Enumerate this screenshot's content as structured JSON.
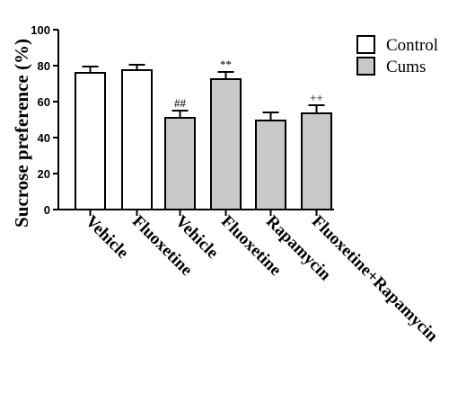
{
  "chart_data": {
    "type": "bar",
    "ylabel": "Sucrose preference (%)",
    "ylim": [
      0,
      100
    ],
    "yticks": [
      0,
      20,
      40,
      60,
      80,
      100
    ],
    "categories": [
      "Vehicle",
      "Fluoxetine",
      "Vehicle",
      "Fluoxetine",
      "Rapamycin",
      "Fluoxetine+Rapamycin"
    ],
    "values": [
      76,
      77.5,
      51,
      72.5,
      49.5,
      53.5
    ],
    "errors": [
      3.5,
      3,
      4,
      4,
      4.5,
      4.5
    ],
    "groups": [
      "Control",
      "Control",
      "Cums",
      "Cums",
      "Cums",
      "Cums"
    ],
    "annotations": [
      "",
      "",
      "##",
      "**",
      "",
      "++"
    ],
    "legend": [
      {
        "name": "Control",
        "color": "#ffffff"
      },
      {
        "name": "Cums",
        "color": "#c8c8c8"
      }
    ],
    "legend_position": "top-right",
    "grid": false
  }
}
